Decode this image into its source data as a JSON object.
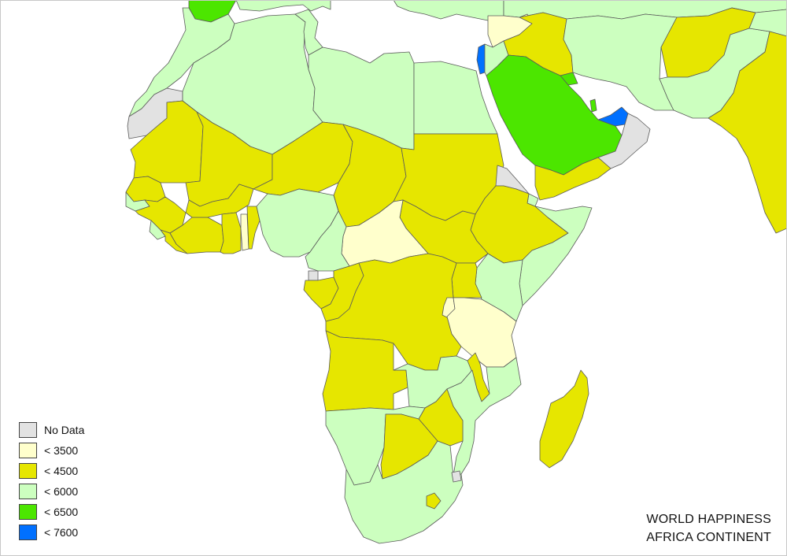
{
  "colors": {
    "no_data": "#e2e2e2",
    "lt_3500": "#ffffcc",
    "lt_4500": "#e6e600",
    "lt_6000": "#ccffbf",
    "lt_6500": "#4ce600",
    "lt_7600": "#0070ff",
    "water": "#ffffff",
    "border": "#5a5a5a"
  },
  "legend": [
    {
      "label": "No Data",
      "color": "#e2e2e2"
    },
    {
      "label": "< 3500",
      "color": "#ffffcc"
    },
    {
      "label": "< 4500",
      "color": "#e6e600"
    },
    {
      "label": "< 6000",
      "color": "#ccffbf"
    },
    {
      "label": "< 6500",
      "color": "#4ce600"
    },
    {
      "label": "< 7600",
      "color": "#0070ff"
    }
  ],
  "title": {
    "line1": "WORLD HAPPINESS",
    "line2": "AFRICA CONTINENT"
  }
}
